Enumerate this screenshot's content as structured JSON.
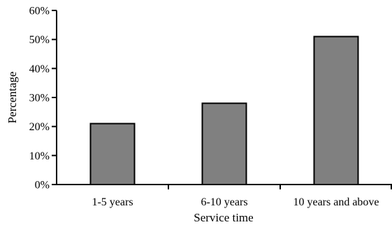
{
  "colors": {
    "bar_fill": "#808080",
    "bar_stroke": "#000000"
  },
  "chart_data": {
    "type": "bar",
    "categories": [
      "1-5 years",
      "6-10 years",
      "10 years and above"
    ],
    "values": [
      21,
      28,
      51
    ],
    "title": "",
    "xlabel": "Service time",
    "ylabel": "Percentage",
    "ylim": [
      0,
      60
    ],
    "yticks": [
      0,
      10,
      20,
      30,
      40,
      50,
      60
    ],
    "ytick_labels": [
      "0%",
      "10%",
      "20%",
      "30%",
      "40%",
      "50%",
      "60%"
    ],
    "grid": false,
    "legend": "none"
  }
}
